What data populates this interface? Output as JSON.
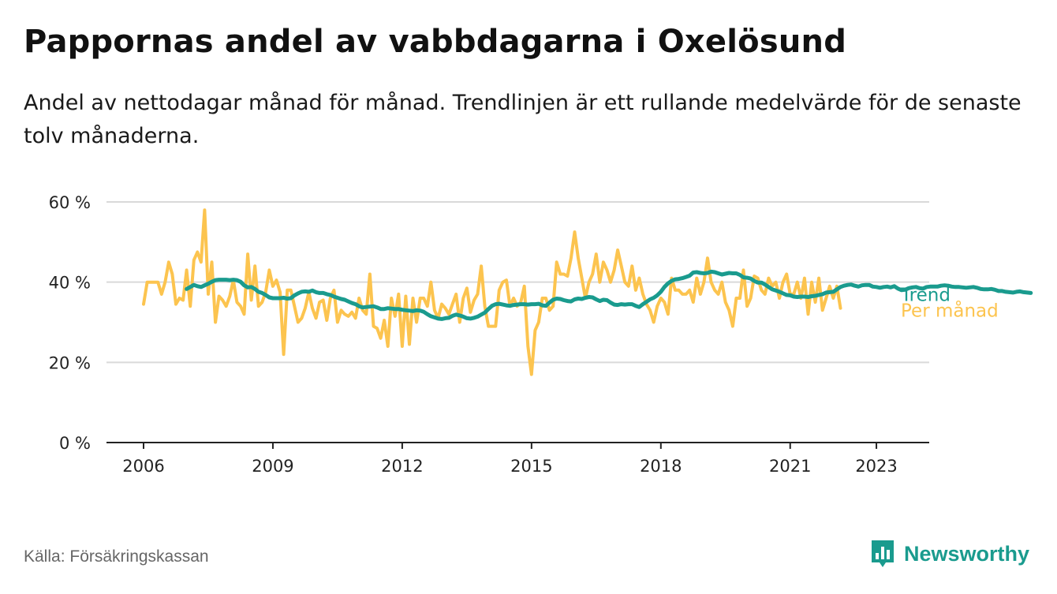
{
  "title": "Pappornas andel av vabbdagarna i Oxelösund",
  "subtitle": "Andel av nettodagar månad för månad. Trendlinjen är ett rullande medelvärde för de senaste tolv månaderna.",
  "source": "Källa: Försäkringskassan",
  "brand": {
    "name": "Newsworthy",
    "color": "#1a9b8e"
  },
  "chart_data": {
    "type": "line",
    "title": "Pappornas andel av vabbdagarna i Oxelösund",
    "ylim": [
      0,
      60
    ],
    "xlim": [
      2006,
      2023.6
    ],
    "y_ticks": [
      0,
      20,
      40,
      60
    ],
    "y_tick_labels": [
      "0 %",
      "20 %",
      "40 %",
      "60 %"
    ],
    "x_ticks": [
      2006,
      2009,
      2012,
      2015,
      2018,
      2021,
      2023
    ],
    "x_tick_labels": [
      "2006",
      "2009",
      "2012",
      "2015",
      "2018",
      "2021",
      "2023"
    ],
    "grid": "horizontal",
    "legend": "line-end labels",
    "x_start": 2006,
    "x_step": 0.08333,
    "series": [
      {
        "name": "Per månad",
        "color": "#fcc44f",
        "values": [
          34.5,
          40,
          40,
          40,
          40,
          37,
          40,
          45,
          42,
          34.5,
          36,
          35.5,
          43,
          34,
          45.5,
          47.5,
          45,
          58,
          37,
          45,
          30,
          36.5,
          35.5,
          34,
          36.5,
          40.5,
          35,
          34,
          32,
          47,
          35.5,
          44,
          34,
          35,
          37.5,
          43,
          39,
          40.5,
          37.5,
          22,
          38,
          38,
          34,
          30,
          31,
          33.5,
          37.5,
          33.5,
          31,
          35,
          35.5,
          30.5,
          36,
          38,
          30,
          33,
          32,
          31.5,
          32.5,
          31,
          36,
          33,
          32,
          42,
          29,
          28.5,
          26,
          30.5,
          24,
          36,
          31.5,
          37,
          24,
          36.5,
          24.5,
          36,
          30,
          36,
          36,
          34,
          40,
          33,
          31,
          34.5,
          33.5,
          32,
          34.5,
          37,
          30,
          36,
          38.5,
          32.5,
          35.5,
          37,
          44,
          34,
          29,
          29,
          29,
          38,
          40,
          40.5,
          34,
          36,
          34,
          35,
          39,
          24,
          17,
          28,
          30,
          36,
          36,
          33,
          34,
          45,
          42,
          42,
          41.5,
          46,
          52.5,
          46,
          41,
          36,
          40,
          42,
          47,
          40,
          45,
          43,
          40,
          43,
          48,
          44,
          40,
          39,
          44,
          38,
          41,
          37,
          34.5,
          33,
          30,
          34,
          36,
          35,
          32,
          41,
          38,
          38,
          37,
          37,
          38,
          35,
          41,
          37,
          40,
          46,
          40,
          38,
          37,
          40,
          35,
          33,
          29,
          36,
          36,
          43,
          34,
          36,
          41.5,
          41,
          38,
          37,
          41,
          39,
          40,
          36,
          40,
          42,
          37,
          37,
          40,
          36,
          41,
          32,
          40,
          35,
          41,
          33,
          36,
          39,
          36,
          39,
          33.5
        ]
      },
      {
        "name": "Trend",
        "color": "#1a9b8e",
        "start_index": 12,
        "values": [
          38.3,
          38.8,
          39.3,
          39,
          38.8,
          39.2,
          39.6,
          40.1,
          40.5,
          40.6,
          40.6,
          40.6,
          40.5,
          40.6,
          40.5,
          40.1,
          39.2,
          38.7,
          38.8,
          38.3,
          37.6,
          37.3,
          36.8,
          36.2,
          36,
          36,
          36,
          36.1,
          35.9,
          36,
          36.7,
          37.2,
          37.6,
          37.7,
          37.6,
          37.9,
          37.5,
          37.3,
          37.3,
          37,
          36.8,
          36.4,
          36.1,
          35.8,
          35.6,
          35.2,
          34.8,
          34.5,
          34,
          33.7,
          33.8,
          33.9,
          34,
          33.7,
          33.3,
          33.3,
          33.5,
          33.4,
          33.3,
          33.3,
          33.1,
          33,
          32.9,
          32.8,
          33,
          32.9,
          32.6,
          32,
          31.5,
          31.2,
          30.9,
          30.8,
          31,
          31.1,
          31.6,
          31.9,
          31.7,
          31.4,
          31,
          30.9,
          31.1,
          31.4,
          31.9,
          32.4,
          33.3,
          34.1,
          34.5,
          34.6,
          34.4,
          34.2,
          34.1,
          34.3,
          34.4,
          34.5,
          34.5,
          34.4,
          34.5,
          34.5,
          34.6,
          34.2,
          34.1,
          34.9,
          35.6,
          35.9,
          35.8,
          35.5,
          35.3,
          35.2,
          35.7,
          35.9,
          35.8,
          36.1,
          36.3,
          36.2,
          35.7,
          35.3,
          35.6,
          35.5,
          34.9,
          34.4,
          34.3,
          34.5,
          34.4,
          34.5,
          34.5,
          34.1,
          33.8,
          34.5,
          35.1,
          35.7,
          36.1,
          36.7,
          37.6,
          38.8,
          39.7,
          40.3,
          40.7,
          40.8,
          41,
          41.3,
          41.6,
          42.4,
          42.5,
          42.3,
          42.2,
          42.3,
          42.6,
          42.5,
          42.2,
          41.9,
          42.1,
          42.3,
          42.2,
          42.2,
          41.8,
          41.2,
          41.1,
          40.9,
          40.3,
          39.9,
          39.9,
          39.4,
          38.8,
          38.2,
          37.9,
          37.6,
          37.2,
          36.8,
          36.7,
          36.4,
          36.3,
          36.4,
          36.4,
          36.3,
          36.5,
          36.6,
          36.8,
          37,
          37.4,
          37.5,
          37.6,
          38.2,
          38.8,
          39.1,
          39.3,
          39.4,
          39.1,
          38.9,
          39.2,
          39.3,
          39.3,
          38.9,
          38.8,
          38.6,
          38.8,
          38.9,
          38.7,
          39,
          38.4,
          38,
          38.1,
          38.5,
          38.7,
          38.8,
          38.5,
          38.4,
          38.8,
          38.9,
          38.9,
          38.9,
          39.1,
          39.2,
          39.1,
          38.9,
          38.8,
          38.8,
          38.7,
          38.6,
          38.7,
          38.8,
          38.6,
          38.3,
          38.2,
          38.2,
          38.3,
          38.1,
          37.8,
          37.8,
          37.6,
          37.5,
          37.4,
          37.6,
          37.7,
          37.5,
          37.4,
          37.3
        ]
      }
    ]
  }
}
